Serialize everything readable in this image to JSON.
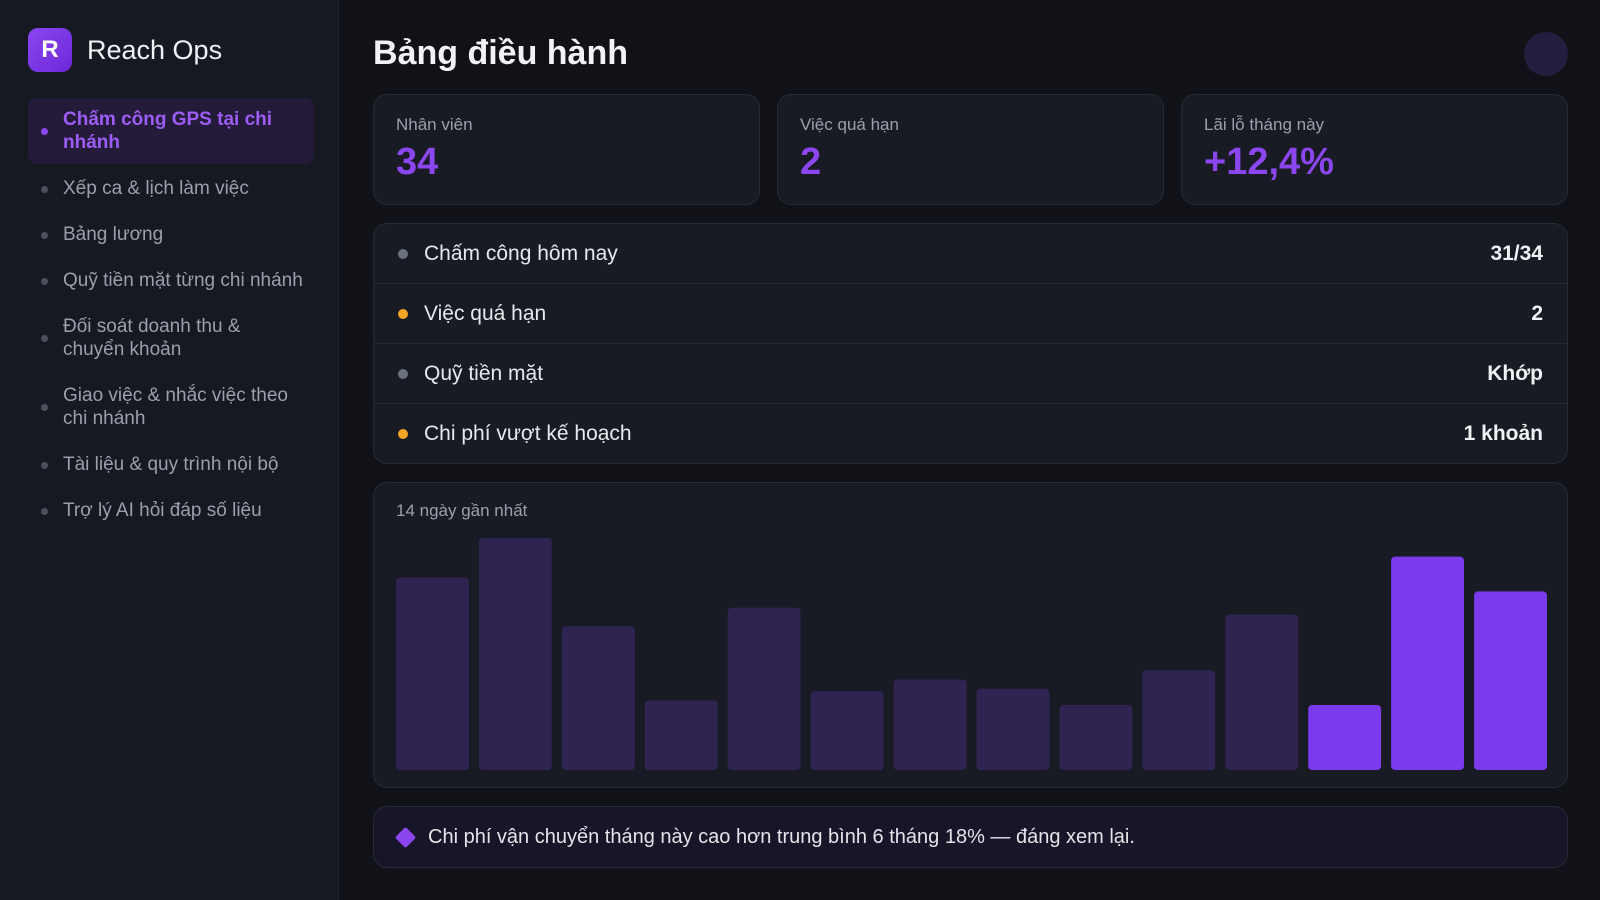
{
  "brand": {
    "logo_letter": "R",
    "name": "Reach Ops",
    "logo_color": "#7c3aed"
  },
  "sidebar": {
    "items": [
      {
        "label": "Chấm công GPS tại chi nhánh",
        "active": true
      },
      {
        "label": "Xếp ca & lịch làm việc",
        "active": false
      },
      {
        "label": "Bảng lương",
        "active": false
      },
      {
        "label": "Quỹ tiền mặt từng chi nhánh",
        "active": false
      },
      {
        "label": "Đối soát doanh thu & chuyển khoản",
        "active": false
      },
      {
        "label": "Giao việc & nhắc việc theo chi nhánh",
        "active": false
      },
      {
        "label": "Tài liệu & quy trình nội bộ",
        "active": false
      },
      {
        "label": "Trợ lý AI hỏi đáp số liệu",
        "active": false
      }
    ]
  },
  "header": {
    "title": "Bảng điều hành"
  },
  "stats": [
    {
      "label": "Nhân viên",
      "value": "34"
    },
    {
      "label": "Việc quá hạn",
      "value": "2"
    },
    {
      "label": "Lãi lỗ tháng này",
      "value": "+12,4%"
    }
  ],
  "status_list": [
    {
      "label": "Chấm công hôm nay",
      "value": "31/34",
      "status": "neutral"
    },
    {
      "label": "Việc quá hạn",
      "value": "2",
      "status": "warning"
    },
    {
      "label": "Quỹ tiền mặt",
      "value": "Khớp",
      "status": "neutral"
    },
    {
      "label": "Chi phí vượt kế hoạch",
      "value": "1 khoản",
      "status": "warning"
    }
  ],
  "status_colors": {
    "neutral": "#6b7280",
    "warning": "#f5a623"
  },
  "chart_data": {
    "type": "bar",
    "title": "14 ngày gần nhất",
    "values": [
      83,
      100,
      62,
      30,
      70,
      34,
      39,
      35,
      28,
      43,
      67,
      28,
      92,
      77
    ],
    "highlight_last": 3,
    "colors": {
      "normal": "#2f2352",
      "highlight": "#7c3aed"
    }
  },
  "insight": {
    "icon": "diamond-icon",
    "text": "Chi phí vận chuyển tháng này cao hơn trung bình 6 tháng 18% — đáng xem lại."
  },
  "accent_color": "#8b46f0"
}
